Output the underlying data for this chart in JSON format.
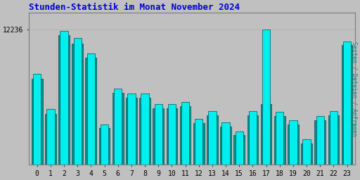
{
  "title": "Stunden-Statistik im Monat November 2024",
  "title_color": "#0000dd",
  "title_fontsize": 9,
  "ylabel_right": "Seiten / Dateien / Anfragen",
  "ylabel_right_color": "#008888",
  "background_color": "#c0c0c0",
  "plot_bg_color": "#c0c0c0",
  "categories": [
    0,
    1,
    2,
    3,
    4,
    5,
    6,
    7,
    8,
    9,
    10,
    11,
    12,
    13,
    14,
    15,
    16,
    17,
    18,
    19,
    20,
    21,
    22,
    23
  ],
  "series_cyan": [
    11800,
    11450,
    12220,
    12150,
    12000,
    11300,
    11650,
    11600,
    11600,
    11500,
    11500,
    11520,
    11350,
    11430,
    11320,
    11230,
    11430,
    12236,
    11420,
    11340,
    11150,
    11380,
    11430,
    12120
  ],
  "series_teal": [
    11750,
    11400,
    12180,
    12100,
    11960,
    11260,
    11610,
    11560,
    11560,
    11460,
    11460,
    11480,
    11310,
    11390,
    11280,
    11190,
    11390,
    11500,
    11380,
    11300,
    11110,
    11340,
    11390,
    12080
  ],
  "bar_color_cyan": "#00eeee",
  "bar_color_teal": "#009090",
  "bar_edge_color": "#005555",
  "ylim_min": 10900,
  "ylim_max": 12400,
  "ytick_val": 12236,
  "ytick_label": "12236",
  "grid_color": "#b0b0b0",
  "grid_linewidth": 0.5,
  "font_family": "monospace",
  "tick_fontsize": 7
}
